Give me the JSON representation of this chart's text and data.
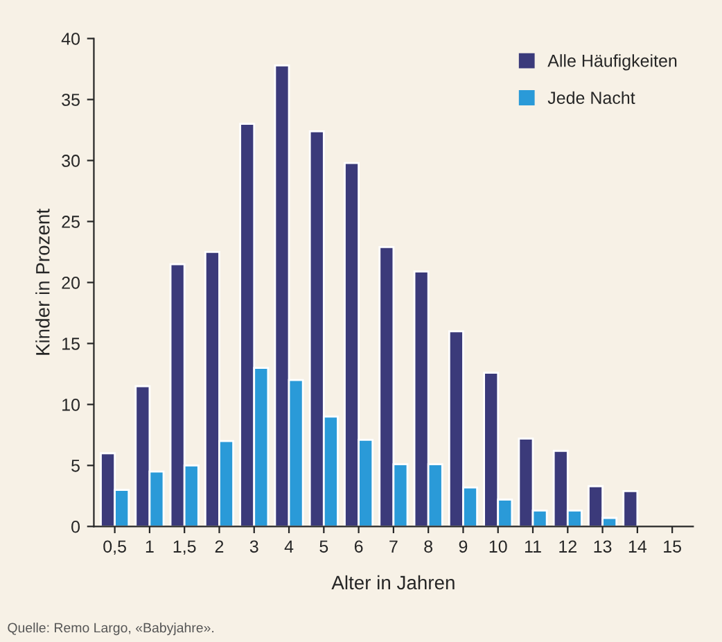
{
  "chart_data": {
    "type": "bar",
    "xlabel": "Alter in Jahren",
    "ylabel": "Kinder in Prozent",
    "categories": [
      "0,5",
      "1",
      "1,5",
      "2",
      "3",
      "4",
      "5",
      "6",
      "7",
      "8",
      "9",
      "10",
      "11",
      "12",
      "13",
      "14",
      "15"
    ],
    "series": [
      {
        "name": "Alle Häufigkeiten",
        "color": "#3b3a7a",
        "values": [
          6,
          11.5,
          21.5,
          22.5,
          33,
          37.8,
          32.4,
          29.8,
          22.9,
          20.9,
          16,
          12.6,
          7.2,
          6.2,
          3.3,
          2.9,
          null
        ]
      },
      {
        "name": "Jede Nacht",
        "color": "#2a9ad8",
        "values": [
          3,
          4.5,
          5,
          7,
          13,
          12,
          9,
          7.1,
          5.1,
          5.1,
          3.2,
          2.2,
          1.3,
          1.3,
          0.7,
          null,
          null
        ]
      }
    ],
    "ylim": [
      0,
      40
    ],
    "yticks": [
      0,
      5,
      10,
      15,
      20,
      25,
      30,
      35,
      40
    ],
    "grid": false,
    "legend": "top right",
    "annotations": [
      "Quelle: Remo Largo, «Babyjahre»."
    ]
  }
}
